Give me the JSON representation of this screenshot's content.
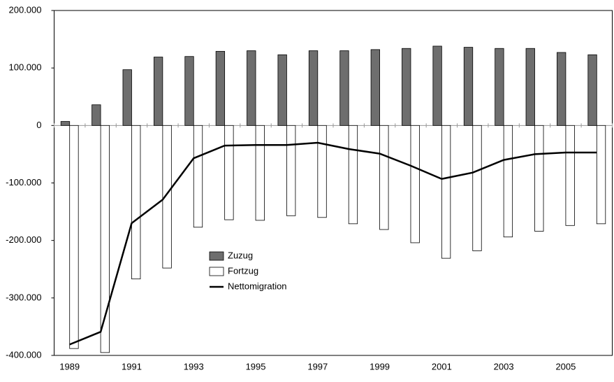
{
  "chart_data": {
    "type": "bar",
    "categories": [
      "1989",
      null,
      "1991",
      null,
      "1993",
      null,
      "1995",
      null,
      "1997",
      null,
      "1999",
      null,
      "2001",
      null,
      "2003",
      null,
      "2005",
      null
    ],
    "series": [
      {
        "name": "Zuzug",
        "type": "bar",
        "color": "#6e6e6e",
        "values": [
          7000,
          36000,
          97000,
          119000,
          120000,
          129000,
          130000,
          123000,
          130000,
          130000,
          132000,
          134000,
          138000,
          136000,
          134000,
          134000,
          127000,
          123000
        ]
      },
      {
        "name": "Fortzug",
        "type": "bar",
        "color": "#ffffff",
        "values": [
          -388000,
          -395000,
          -267000,
          -248000,
          -177000,
          -164000,
          -165000,
          -157000,
          -160000,
          -171000,
          -181000,
          -204000,
          -231000,
          -218000,
          -194000,
          -184000,
          -174000,
          -171000
        ]
      },
      {
        "name": "Nettomigration",
        "type": "line",
        "color": "#000000",
        "values": [
          -381000,
          -359000,
          -170000,
          -129000,
          -57000,
          -35000,
          -34000,
          -34000,
          -30000,
          -41000,
          -49000,
          -70000,
          -93000,
          -82000,
          -60000,
          -50000,
          -47000,
          -47000
        ]
      }
    ],
    "ylim": [
      -400000,
      200000
    ],
    "yticks": [
      {
        "value": -400000,
        "label": "-400.000"
      },
      {
        "value": -300000,
        "label": "-300.000"
      },
      {
        "value": -200000,
        "label": "-200.000"
      },
      {
        "value": -100000,
        "label": "-100.000"
      },
      {
        "value": 0,
        "label": "0"
      },
      {
        "value": 100000,
        "label": "100.000"
      },
      {
        "value": 200000,
        "label": "200.000"
      }
    ],
    "grid": false
  }
}
